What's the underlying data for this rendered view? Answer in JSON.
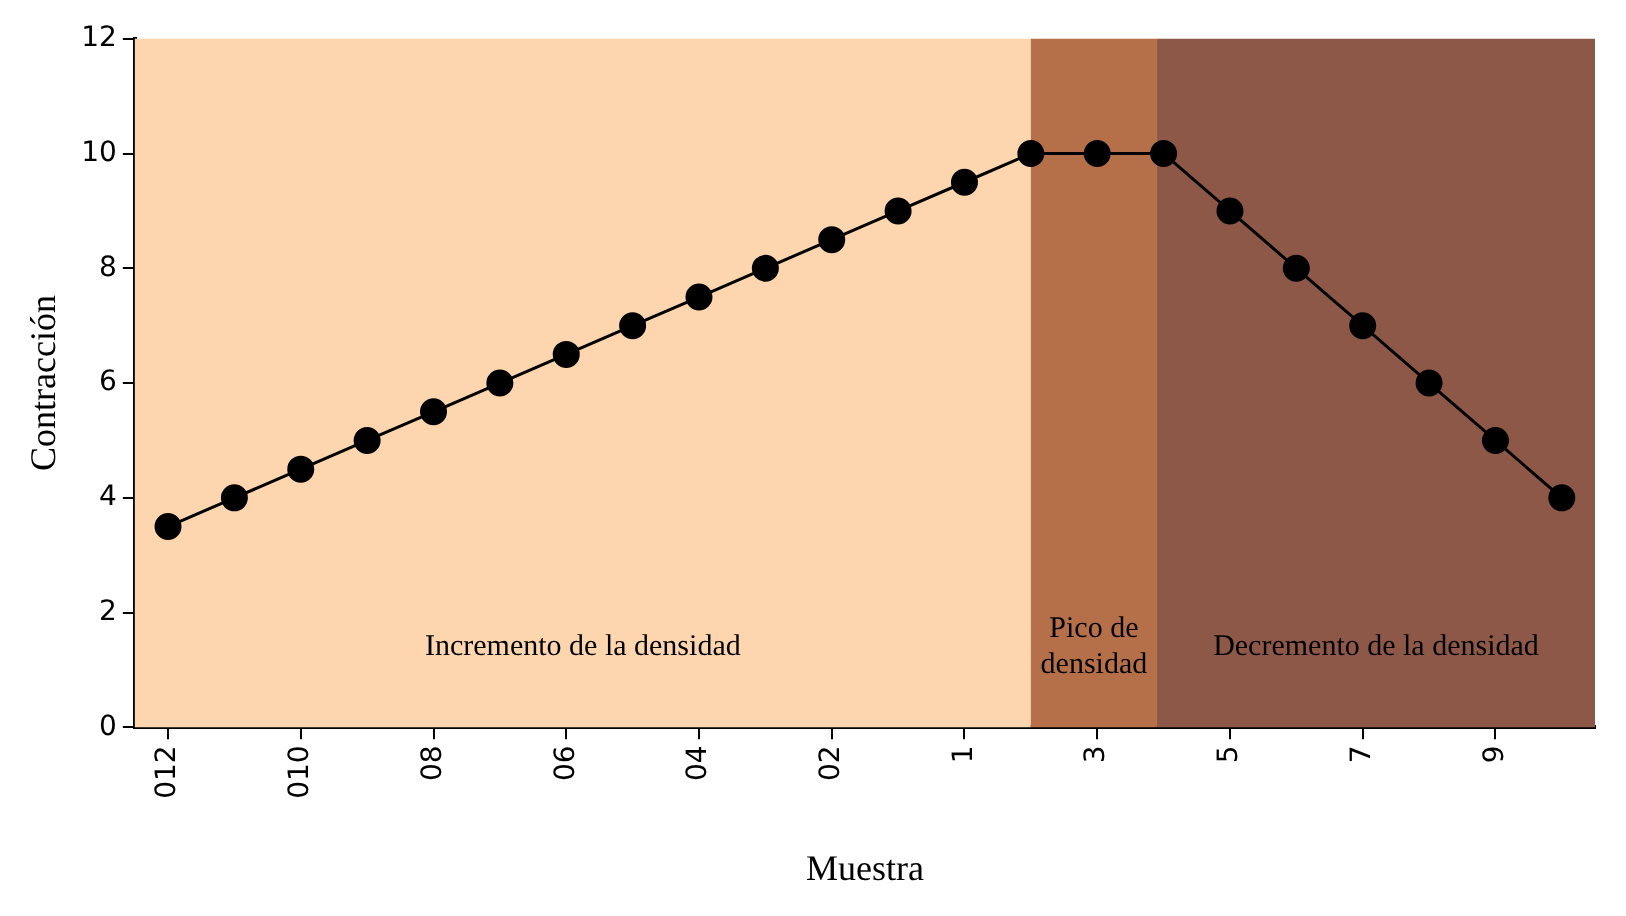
{
  "chart_data": {
    "type": "line",
    "xlabel": "Muestra",
    "ylabel": "Contracción",
    "categories": [
      "012",
      null,
      "010",
      null,
      "08",
      null,
      "06",
      null,
      "04",
      null,
      "02",
      null,
      "1",
      null,
      "3",
      null,
      "5",
      null,
      "7",
      null,
      "9",
      null
    ],
    "series": [
      {
        "color": "#000000",
        "values": [
          3.5,
          4,
          4.5,
          5,
          5.5,
          6,
          6.5,
          7,
          7.5,
          8,
          8.5,
          9,
          9.5,
          10,
          10,
          10,
          9,
          8,
          7,
          6,
          5,
          4
        ]
      }
    ],
    "ylim": [
      0,
      12
    ],
    "yticks": [
      0,
      2,
      4,
      6,
      8,
      10,
      12
    ],
    "annotations": [
      "Incremento de la densidad",
      "Pico de densidad",
      "Decremento de la densidad"
    ],
    "grid": false,
    "legend": false,
    "marker": "circle",
    "line_style": "solid"
  }
}
